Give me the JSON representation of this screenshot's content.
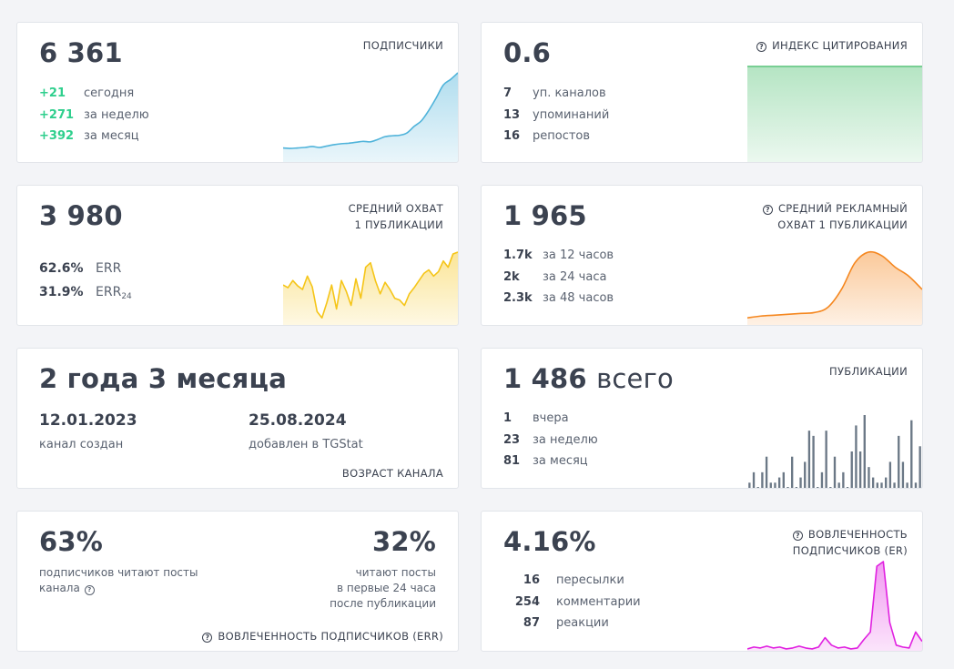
{
  "subscribers": {
    "value": "6 361",
    "label": "ПОДПИСЧИКИ",
    "rows": [
      {
        "num": "+21",
        "text": "сегодня"
      },
      {
        "num": "+271",
        "text": "за неделю"
      },
      {
        "num": "+392",
        "text": "за месяц"
      }
    ],
    "chart_color": "#4fb3da"
  },
  "citation": {
    "value": "0.6",
    "label": "ИНДЕКС ЦИТИРОВАНИЯ",
    "rows": [
      {
        "num": "7",
        "text": "уп. каналов"
      },
      {
        "num": "13",
        "text": "упоминаний"
      },
      {
        "num": "16",
        "text": "репостов"
      }
    ],
    "chart_color": "#5ac47a"
  },
  "reach": {
    "value": "3 980",
    "label_line1": "СРЕДНИЙ ОХВАТ",
    "label_line2": "1 ПУБЛИКАЦИИ",
    "err": {
      "num": "62.6%",
      "text": "ERR"
    },
    "err24": {
      "num": "31.9%",
      "text": "ERR",
      "sub": "24"
    },
    "chart_color": "#f5c518"
  },
  "ad_reach": {
    "value": "1 965",
    "label_line1": "СРЕДНИЙ РЕКЛАМНЫЙ",
    "label_line2": "ОХВАТ 1 ПУБЛИКАЦИИ",
    "rows": [
      {
        "num": "1.7k",
        "text": "за 12 часов"
      },
      {
        "num": "2k",
        "text": "за 24 часа"
      },
      {
        "num": "2.3k",
        "text": "за 48 часов"
      }
    ],
    "chart_color": "#f5871f"
  },
  "age": {
    "value": "2 года 3 месяца",
    "created_date": "12.01.2023",
    "created_caption": "канал создан",
    "added_date": "25.08.2024",
    "added_caption": "добавлен в TGStat",
    "label": "ВОЗРАСТ КАНАЛА"
  },
  "posts": {
    "value": "1 486",
    "value_suffix": "всего",
    "label": "ПУБЛИКАЦИИ",
    "rows": [
      {
        "num": "1",
        "text": "вчера"
      },
      {
        "num": "23",
        "text": "за неделю"
      },
      {
        "num": "81",
        "text": "за месяц"
      }
    ],
    "chart_color": "#6b7886"
  },
  "err_card": {
    "left_value": "63%",
    "left_caption_line1": "подписчиков читают посты",
    "left_caption_line2": "канала",
    "right_value": "32%",
    "right_caption_line1": "читают посты",
    "right_caption_line2": "в первые 24 часа",
    "right_caption_line3": "после публикации",
    "label": "ВОВЛЕЧЕННОСТЬ ПОДПИСЧИКОВ (ERR)"
  },
  "er_card": {
    "value": "4.16%",
    "label_line1": "ВОВЛЕЧЕННОСТЬ",
    "label_line2": "ПОДПИСЧИКОВ (ER)",
    "rows": [
      {
        "num": "16",
        "text": "пересылки"
      },
      {
        "num": "254",
        "text": "комментарии"
      },
      {
        "num": "87",
        "text": "реакции"
      }
    ],
    "chart_color": "#e020e0"
  },
  "icons": {
    "question": "?"
  },
  "chart_data": [
    {
      "type": "area",
      "title": "ПОДПИСЧИКИ",
      "values": [
        15,
        14.5,
        15,
        15.5,
        16.5,
        15.5,
        17,
        18.5,
        19.5,
        20,
        21,
        22,
        21.5,
        24,
        27,
        28,
        28.5,
        31,
        38,
        44,
        55,
        68,
        82,
        88,
        95
      ]
    },
    {
      "type": "area",
      "title": "ИНДЕКС ЦИТИРОВАНИЯ",
      "values": [
        100,
        100,
        100,
        100,
        100
      ]
    },
    {
      "type": "area",
      "title": "СРЕДНИЙ ОХВАТ 1 ПУБЛИКАЦИИ",
      "values": [
        45,
        42,
        50,
        44,
        40,
        55,
        43,
        15,
        8,
        25,
        45,
        18,
        50,
        38,
        22,
        52,
        30,
        65,
        70,
        50,
        35,
        48,
        40,
        30,
        28,
        22,
        35,
        42,
        50,
        58,
        62,
        55,
        60,
        72,
        65,
        80,
        82
      ]
    },
    {
      "type": "area",
      "title": "СРЕДНИЙ РЕКЛАМНЫЙ ОХВАТ 1 ПУБЛИКАЦИИ",
      "values": [
        8,
        10,
        11,
        12,
        13,
        14,
        20,
        40,
        70,
        82,
        78,
        65,
        55,
        40
      ]
    },
    {
      "type": "bar",
      "title": "ПУБЛИКАЦИИ",
      "values": [
        1,
        3,
        0,
        3,
        6,
        1,
        1,
        2,
        3,
        0,
        6,
        0,
        2,
        5,
        11,
        10,
        0,
        3,
        11,
        0,
        6,
        1,
        3,
        0,
        7,
        12,
        7,
        14,
        4,
        2,
        1,
        1,
        2,
        5,
        1,
        10,
        5,
        1,
        13,
        1,
        8
      ]
    },
    {
      "type": "area",
      "title": "ВОВЛЕЧЕННОСТЬ ПОДПИСЧИКОВ (ER)",
      "values": [
        2,
        4,
        3,
        5,
        3,
        4,
        2,
        3,
        5,
        3,
        2,
        4,
        14,
        6,
        3,
        4,
        2,
        3,
        12,
        20,
        90,
        95,
        30,
        6,
        4,
        3,
        20,
        10
      ]
    }
  ]
}
